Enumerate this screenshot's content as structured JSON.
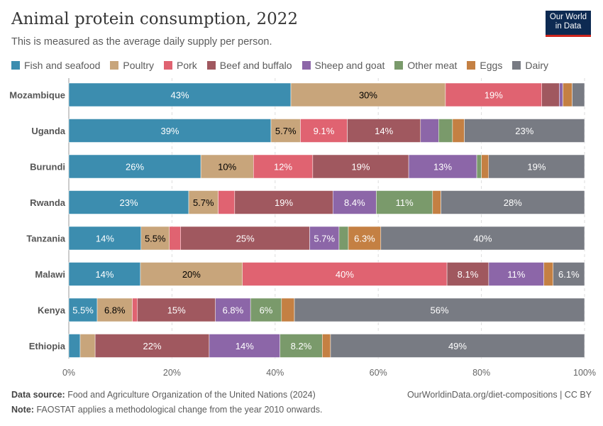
{
  "title": "Animal protein consumption, 2022",
  "subtitle": "This is measured as the average daily supply per person.",
  "logo": {
    "line1": "Our World",
    "line2": "in Data"
  },
  "footer": {
    "source_label": "Data source:",
    "source": "Food and Agriculture Organization of the United Nations (2024)",
    "link": "OurWorldinData.org/diet-compositions | CC BY",
    "note_label": "Note:",
    "note": "FAOSTAT applies a methodological change from the year 2010 onwards."
  },
  "chart_data": {
    "type": "bar",
    "orientation": "horizontal",
    "stacked": true,
    "legend_position": "top",
    "grid": true,
    "xlim": [
      0,
      100
    ],
    "x_ticks": [
      "0%",
      "20%",
      "40%",
      "60%",
      "80%",
      "100%"
    ],
    "categories": [
      "Mozambique",
      "Uganda",
      "Burundi",
      "Rwanda",
      "Tanzania",
      "Malawi",
      "Kenya",
      "Ethiopia"
    ],
    "series": [
      {
        "name": "Fish and seafood",
        "color": "#3C8DAF",
        "label_color": "#ffffff",
        "values": [
          43.1,
          39.2,
          25.6,
          23.2,
          14.0,
          13.9,
          5.5,
          2.2
        ]
      },
      {
        "name": "Poultry",
        "color": "#C8A57B",
        "label_color": "#000000",
        "values": [
          30.0,
          5.7,
          10.2,
          5.7,
          5.5,
          19.8,
          6.8,
          2.9
        ]
      },
      {
        "name": "Pork",
        "color": "#E06371",
        "label_color": "#ffffff",
        "values": [
          18.7,
          9.1,
          11.5,
          3.2,
          2.2,
          39.7,
          1.0,
          0.0
        ]
      },
      {
        "name": "Beef and buffalo",
        "color": "#A0585F",
        "label_color": "#ffffff",
        "values": [
          3.4,
          14.2,
          18.6,
          19.0,
          25.0,
          8.1,
          15.1,
          22.1
        ]
      },
      {
        "name": "Sheep and goat",
        "color": "#8C66A8",
        "label_color": "#ffffff",
        "values": [
          0.7,
          3.5,
          13.2,
          8.4,
          5.7,
          10.7,
          6.8,
          13.7
        ]
      },
      {
        "name": "Other meat",
        "color": "#7A9A6B",
        "label_color": "#ffffff",
        "values": [
          0.0,
          2.7,
          0.9,
          10.9,
          1.8,
          0.0,
          6.0,
          8.2
        ]
      },
      {
        "name": "Eggs",
        "color": "#C48043",
        "label_color": "#ffffff",
        "values": [
          1.8,
          2.3,
          1.4,
          1.6,
          6.3,
          1.8,
          2.5,
          1.6
        ]
      },
      {
        "name": "Dairy",
        "color": "#787B83",
        "label_color": "#ffffff",
        "values": [
          2.4,
          23.3,
          18.6,
          27.8,
          39.5,
          6.1,
          56.2,
          49.2
        ]
      }
    ]
  }
}
